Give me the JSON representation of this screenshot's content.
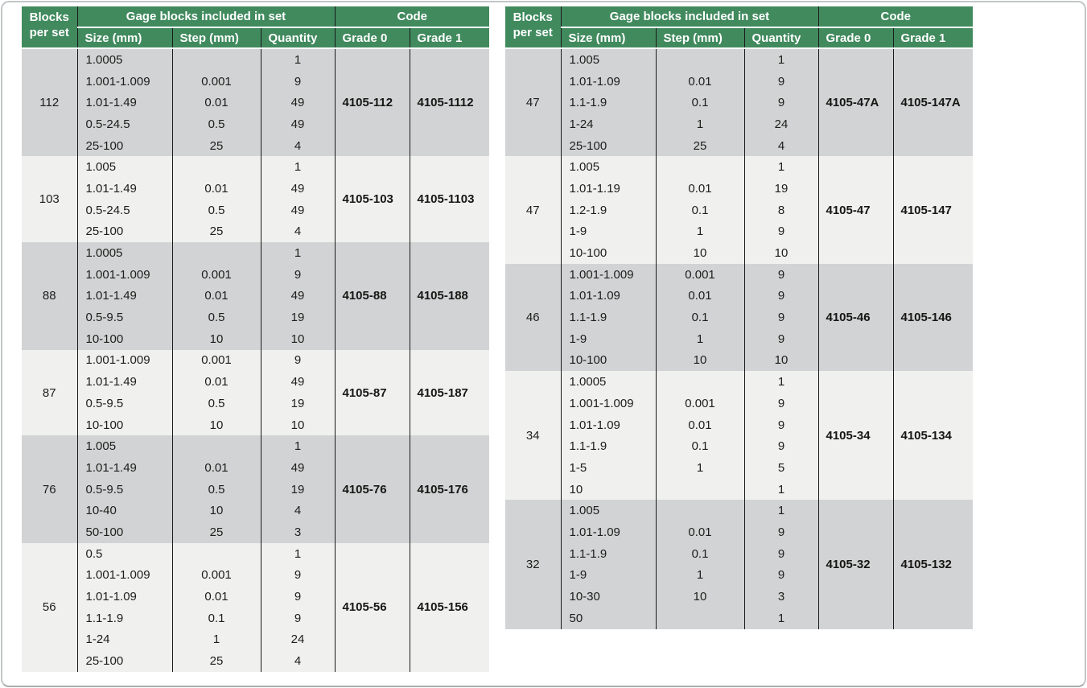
{
  "colors": {
    "header_green": "#418a5e",
    "band_dark": "#d2d3d4",
    "band_light": "#f0f0ee",
    "grid_line": "#1a1a1a",
    "header_text": "#ffffff",
    "body_text": "#1d1d1b"
  },
  "table_header": {
    "blocks_per_set_line1": "Blocks",
    "blocks_per_set_line2": "per set",
    "gage_blocks_group": "Gage blocks included in set",
    "code_group": "Code",
    "size": "Size (mm)",
    "step": "Step (mm)",
    "quantity": "Quantity",
    "grade0": "Grade 0",
    "grade1": "Grade 1"
  },
  "tables": [
    {
      "name": "left",
      "groups": [
        {
          "blocks": "112",
          "grade0": "4105-112",
          "grade1": "4105-1112",
          "rows": [
            {
              "size": "1.0005",
              "step": "",
              "qty": "1"
            },
            {
              "size": "1.001-1.009",
              "step": "0.001",
              "qty": "9"
            },
            {
              "size": "1.01-1.49",
              "step": "0.01",
              "qty": "49"
            },
            {
              "size": "0.5-24.5",
              "step": "0.5",
              "qty": "49"
            },
            {
              "size": "25-100",
              "step": "25",
              "qty": "4"
            }
          ]
        },
        {
          "blocks": "103",
          "grade0": "4105-103",
          "grade1": "4105-1103",
          "rows": [
            {
              "size": "1.005",
              "step": "",
              "qty": "1"
            },
            {
              "size": "1.01-1.49",
              "step": "0.01",
              "qty": "49"
            },
            {
              "size": "0.5-24.5",
              "step": "0.5",
              "qty": "49"
            },
            {
              "size": "25-100",
              "step": "25",
              "qty": "4"
            }
          ]
        },
        {
          "blocks": "88",
          "grade0": "4105-88",
          "grade1": "4105-188",
          "rows": [
            {
              "size": "1.0005",
              "step": "",
              "qty": "1"
            },
            {
              "size": "1.001-1.009",
              "step": "0.001",
              "qty": "9"
            },
            {
              "size": "1.01-1.49",
              "step": "0.01",
              "qty": "49"
            },
            {
              "size": "0.5-9.5",
              "step": "0.5",
              "qty": "19"
            },
            {
              "size": "10-100",
              "step": "10",
              "qty": "10"
            }
          ]
        },
        {
          "blocks": "87",
          "grade0": "4105-87",
          "grade1": "4105-187",
          "rows": [
            {
              "size": "1.001-1.009",
              "step": "0.001",
              "qty": "9"
            },
            {
              "size": "1.01-1.49",
              "step": "0.01",
              "qty": "49"
            },
            {
              "size": "0.5-9.5",
              "step": "0.5",
              "qty": "19"
            },
            {
              "size": "10-100",
              "step": "10",
              "qty": "10"
            }
          ]
        },
        {
          "blocks": "76",
          "grade0": "4105-76",
          "grade1": "4105-176",
          "rows": [
            {
              "size": "1.005",
              "step": "",
              "qty": "1"
            },
            {
              "size": "1.01-1.49",
              "step": "0.01",
              "qty": "49"
            },
            {
              "size": "0.5-9.5",
              "step": "0.5",
              "qty": "19"
            },
            {
              "size": "10-40",
              "step": "10",
              "qty": "4"
            },
            {
              "size": "50-100",
              "step": "25",
              "qty": "3"
            }
          ]
        },
        {
          "blocks": "56",
          "grade0": "4105-56",
          "grade1": "4105-156",
          "rows": [
            {
              "size": "0.5",
              "step": "",
              "qty": "1"
            },
            {
              "size": "1.001-1.009",
              "step": "0.001",
              "qty": "9"
            },
            {
              "size": "1.01-1.09",
              "step": "0.01",
              "qty": "9"
            },
            {
              "size": "1.1-1.9",
              "step": "0.1",
              "qty": "9"
            },
            {
              "size": "1-24",
              "step": "1",
              "qty": "24"
            },
            {
              "size": "25-100",
              "step": "25",
              "qty": "4"
            }
          ]
        }
      ]
    },
    {
      "name": "right",
      "groups": [
        {
          "blocks": "47",
          "grade0": "4105-47A",
          "grade1": "4105-147A",
          "rows": [
            {
              "size": "1.005",
              "step": "",
              "qty": "1"
            },
            {
              "size": "1.01-1.09",
              "step": "0.01",
              "qty": "9"
            },
            {
              "size": "1.1-1.9",
              "step": "0.1",
              "qty": "9"
            },
            {
              "size": "1-24",
              "step": "1",
              "qty": "24"
            },
            {
              "size": "25-100",
              "step": "25",
              "qty": "4"
            }
          ]
        },
        {
          "blocks": "47",
          "grade0": "4105-47",
          "grade1": "4105-147",
          "rows": [
            {
              "size": "1.005",
              "step": "",
              "qty": "1"
            },
            {
              "size": "1.01-1.19",
              "step": "0.01",
              "qty": "19"
            },
            {
              "size": "1.2-1.9",
              "step": "0.1",
              "qty": "8"
            },
            {
              "size": "1-9",
              "step": "1",
              "qty": "9"
            },
            {
              "size": "10-100",
              "step": "10",
              "qty": "10"
            }
          ]
        },
        {
          "blocks": "46",
          "grade0": "4105-46",
          "grade1": "4105-146",
          "rows": [
            {
              "size": "1.001-1.009",
              "step": "0.001",
              "qty": "9"
            },
            {
              "size": "1.01-1.09",
              "step": "0.01",
              "qty": "9"
            },
            {
              "size": "1.1-1.9",
              "step": "0.1",
              "qty": "9"
            },
            {
              "size": "1-9",
              "step": "1",
              "qty": "9"
            },
            {
              "size": "10-100",
              "step": "10",
              "qty": "10"
            }
          ]
        },
        {
          "blocks": "34",
          "grade0": "4105-34",
          "grade1": "4105-134",
          "rows": [
            {
              "size": "1.0005",
              "step": "",
              "qty": "1"
            },
            {
              "size": "1.001-1.009",
              "step": "0.001",
              "qty": "9"
            },
            {
              "size": "1.01-1.09",
              "step": "0.01",
              "qty": "9"
            },
            {
              "size": "1.1-1.9",
              "step": "0.1",
              "qty": "9"
            },
            {
              "size": "1-5",
              "step": "1",
              "qty": "5"
            },
            {
              "size": "10",
              "step": "",
              "qty": "1"
            }
          ]
        },
        {
          "blocks": "32",
          "grade0": "4105-32",
          "grade1": "4105-132",
          "rows": [
            {
              "size": "1.005",
              "step": "",
              "qty": "1"
            },
            {
              "size": "1.01-1.09",
              "step": "0.01",
              "qty": "9"
            },
            {
              "size": "1.1-1.9",
              "step": "0.1",
              "qty": "9"
            },
            {
              "size": "1-9",
              "step": "1",
              "qty": "9"
            },
            {
              "size": "10-30",
              "step": "10",
              "qty": "3"
            },
            {
              "size": "50",
              "step": "",
              "qty": "1"
            }
          ]
        }
      ]
    }
  ]
}
